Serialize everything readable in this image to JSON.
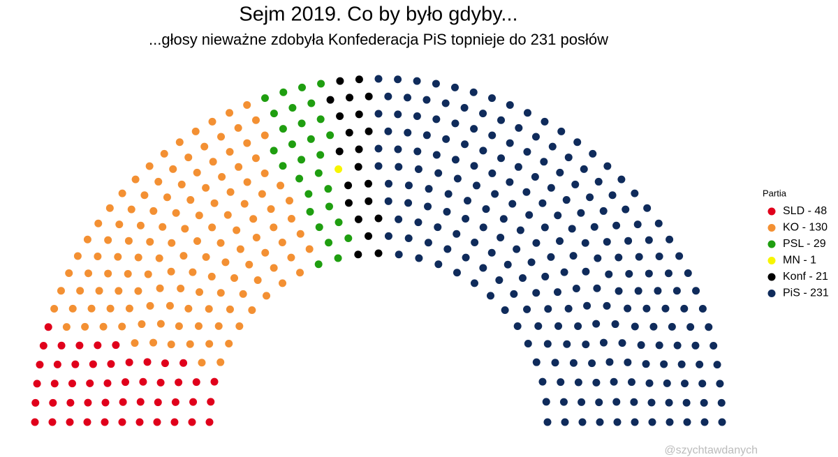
{
  "chart_data": {
    "type": "parliament",
    "title": "Sejm 2019. Co by było gdyby...",
    "subtitle": "...głosy nieważne zdobyła Konfederacja PiS topnieje do 231 posłów",
    "legend_title": "Partia",
    "legend_position": "right",
    "caption": "@szychtawdanych",
    "series": [
      {
        "name": "SLD - 48",
        "color": "#e0001b",
        "value": 48
      },
      {
        "name": "KO - 130",
        "color": "#f39033",
        "value": 130
      },
      {
        "name": "PSL - 29",
        "color": "#1f9e10",
        "value": 29
      },
      {
        "name": "MN - 1",
        "color": "#f7f500",
        "value": 1
      },
      {
        "name": "Konf - 21",
        "color": "#000000",
        "value": 21
      },
      {
        "name": "PiS - 231",
        "color": "#0f2b5b",
        "value": 231
      }
    ]
  }
}
